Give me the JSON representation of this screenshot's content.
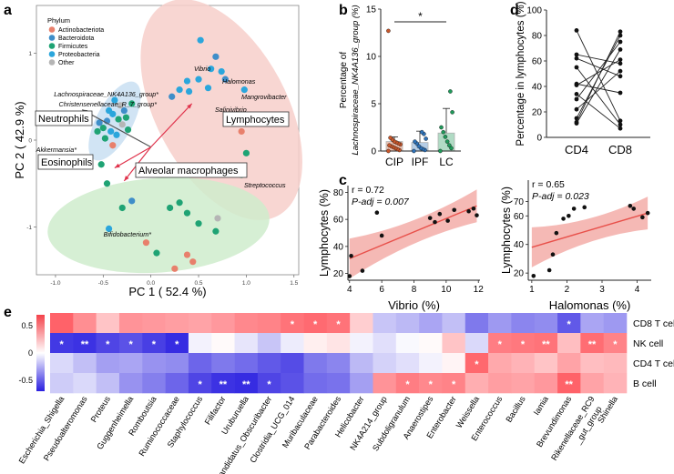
{
  "panels": {
    "a": "a",
    "b": "b",
    "c": "c",
    "d": "d",
    "e": "e"
  },
  "colors": {
    "actinobacteriota": "#e8806c",
    "bacteroidota": "#3f8ec9",
    "firmicutes": "#1fa374",
    "proteobacteria": "#2ba6dc",
    "other": "#b5b5b5",
    "ellipse_red": "#f7cfca",
    "ellipse_green": "#cfeccc",
    "ellipse_blue": "#c9dff2",
    "arrow_red": "#e0334c",
    "arrow_grey": "#555555",
    "regression": "#e8504a",
    "heat_pos": "#f4424a",
    "heat_neg": "#2a1fe0"
  },
  "chart_data": [
    {
      "id": "a",
      "type": "scatter",
      "xlabel": "PC 1 ( 52.4 %)",
      "ylabel": "PC 2 ( 42.9 %)",
      "xlim": [
        -1.2,
        1.55
      ],
      "ylim": [
        -1.55,
        1.55
      ],
      "xticks": [
        -1.0,
        -0.5,
        0.0,
        0.5,
        1.0,
        1.5
      ],
      "xtick_labels": [
        "-1.0",
        "-0.5",
        "0.0",
        "0.5",
        "1.0",
        "1.5"
      ],
      "yticks": [
        -1,
        0,
        1
      ],
      "ytick_labels": [
        "-1",
        "0",
        "1"
      ],
      "legend": {
        "title": "Phylum",
        "items": [
          "Actinobacteriota",
          "Bacteroidota",
          "Firmicutes",
          "Proteobacteria",
          "Other"
        ],
        "keys": [
          "actinobacteriota",
          "bacteroidota",
          "firmicutes",
          "proteobacteria",
          "other"
        ]
      },
      "arrow_origin": [
        0.0,
        -0.08
      ],
      "arrows": [
        {
          "label": "Lymphocytes",
          "end": [
            0.43,
            0.42
          ],
          "color_key": "arrow_red",
          "boxed": true
        },
        {
          "label": "Neutrophils",
          "end": [
            -0.72,
            0.35
          ],
          "color_key": "arrow_grey",
          "boxed": true
        },
        {
          "label": "Eosinophils",
          "end": [
            -0.38,
            -0.32
          ],
          "color_key": "arrow_red",
          "boxed": true
        },
        {
          "label": "Alveolar macrophages",
          "end": [
            -0.28,
            -0.47
          ],
          "color_key": "arrow_red",
          "boxed": true
        }
      ],
      "taxa_labels": [
        {
          "label": "Vibrio",
          "x": 0.55,
          "y": 0.95
        },
        {
          "label": "Halomonas",
          "x": 0.82,
          "y": 0.76
        },
        {
          "label": "Mangrovibacter",
          "x": 1.04,
          "y": 0.58
        },
        {
          "label": "Salinivibrio",
          "x": 0.82,
          "y": 0.42
        },
        {
          "label": "Lachnospiraceae_NK4A136_group*",
          "x": -0.36,
          "y": 0.54
        },
        {
          "label": "Christensenellaceae_R_7_group*",
          "x": -0.36,
          "y": 0.37
        },
        {
          "label": "Akkermansia*",
          "x": -0.48,
          "y": -0.08
        },
        {
          "label": "Streptococcus",
          "x": 1.0,
          "y": -0.42
        },
        {
          "label": "Bifidobacterium*",
          "x": 0.02,
          "y": -1.0
        }
      ],
      "points": [
        {
          "x": 0.52,
          "y": 1.15,
          "c": "proteobacteria"
        },
        {
          "x": 0.68,
          "y": 0.96,
          "c": "bacteroidota"
        },
        {
          "x": 0.63,
          "y": 0.82,
          "c": "proteobacteria"
        },
        {
          "x": 0.74,
          "y": 0.79,
          "c": "proteobacteria"
        },
        {
          "x": 0.78,
          "y": 0.7,
          "c": "bacteroidota"
        },
        {
          "x": 0.98,
          "y": 0.58,
          "c": "proteobacteria"
        },
        {
          "x": 0.6,
          "y": 0.6,
          "c": "proteobacteria"
        },
        {
          "x": 0.5,
          "y": 0.7,
          "c": "proteobacteria"
        },
        {
          "x": 0.4,
          "y": 0.56,
          "c": "proteobacteria"
        },
        {
          "x": 0.3,
          "y": 0.58,
          "c": "proteobacteria"
        },
        {
          "x": 0.38,
          "y": 0.68,
          "c": "proteobacteria"
        },
        {
          "x": 0.22,
          "y": 0.5,
          "c": "bacteroidota"
        },
        {
          "x": 0.95,
          "y": 0.1,
          "c": "actinobacteriota"
        },
        {
          "x": 1.0,
          "y": -0.15,
          "c": "firmicutes"
        },
        {
          "x": 0.95,
          "y": -0.4,
          "c": "firmicutes"
        },
        {
          "x": -0.38,
          "y": 0.46,
          "c": "proteobacteria"
        },
        {
          "x": -0.32,
          "y": 0.4,
          "c": "other"
        },
        {
          "x": -0.28,
          "y": 0.34,
          "c": "bacteroidota"
        },
        {
          "x": -0.4,
          "y": 0.3,
          "c": "proteobacteria"
        },
        {
          "x": -0.34,
          "y": 0.24,
          "c": "firmicutes"
        },
        {
          "x": -0.46,
          "y": 0.22,
          "c": "bacteroidota"
        },
        {
          "x": -0.3,
          "y": 0.18,
          "c": "other"
        },
        {
          "x": -0.5,
          "y": 0.14,
          "c": "firmicutes"
        },
        {
          "x": -0.42,
          "y": 0.1,
          "c": "proteobacteria"
        },
        {
          "x": -0.56,
          "y": 0.1,
          "c": "firmicutes"
        },
        {
          "x": -0.36,
          "y": 0.06,
          "c": "proteobacteria"
        },
        {
          "x": -0.48,
          "y": 0.02,
          "c": "firmicutes"
        },
        {
          "x": -0.4,
          "y": -0.06,
          "c": "actinobacteriota"
        },
        {
          "x": -0.44,
          "y": 0.34,
          "c": "proteobacteria"
        },
        {
          "x": -0.2,
          "y": 0.42,
          "c": "firmicutes"
        },
        {
          "x": -0.54,
          "y": 0.2,
          "c": "bacteroidota"
        },
        {
          "x": -0.26,
          "y": 0.26,
          "c": "firmicutes"
        },
        {
          "x": -0.24,
          "y": 0.12,
          "c": "firmicutes"
        },
        {
          "x": -0.52,
          "y": -0.28,
          "c": "firmicutes"
        },
        {
          "x": -0.46,
          "y": -0.5,
          "c": "firmicutes"
        },
        {
          "x": -0.3,
          "y": -0.78,
          "c": "firmicutes"
        },
        {
          "x": -0.44,
          "y": -1.02,
          "c": "proteobacteria"
        },
        {
          "x": -0.2,
          "y": -0.7,
          "c": "bacteroidota"
        },
        {
          "x": 0.2,
          "y": -0.78,
          "c": "firmicutes"
        },
        {
          "x": 0.3,
          "y": -0.72,
          "c": "firmicutes"
        },
        {
          "x": 0.38,
          "y": -0.84,
          "c": "firmicutes"
        },
        {
          "x": 0.5,
          "y": -0.96,
          "c": "firmicutes"
        },
        {
          "x": 0.7,
          "y": -0.9,
          "c": "other"
        },
        {
          "x": 0.68,
          "y": -1.05,
          "c": "firmicutes"
        },
        {
          "x": -0.05,
          "y": -1.18,
          "c": "actinobacteriota"
        },
        {
          "x": 0.38,
          "y": -1.32,
          "c": "actinobacteriota"
        },
        {
          "x": 0.44,
          "y": -1.4,
          "c": "actinobacteriota"
        },
        {
          "x": 0.25,
          "y": -1.48,
          "c": "actinobacteriota"
        },
        {
          "x": 0.06,
          "y": -1.3,
          "c": "firmicutes"
        }
      ]
    },
    {
      "id": "b",
      "type": "bar",
      "ylabel": "Percentage of\nLachnospiraceae_NK4A136_group (%)",
      "categories": [
        "CIP",
        "IPF",
        "LC"
      ],
      "values": [
        1.0,
        0.9,
        1.9
      ],
      "error_upper": [
        1.5,
        2.1,
        4.5
      ],
      "ylim": [
        0,
        15
      ],
      "yticks": [
        0,
        5,
        10,
        15
      ],
      "ytick_labels": [
        "0",
        "5",
        "10",
        "15"
      ],
      "significance": "*",
      "sig_pair": [
        0,
        2
      ],
      "points": [
        [
          0.0,
          0.1,
          0.2,
          0.3,
          0.4,
          0.5,
          0.6,
          0.7,
          0.8,
          0.9,
          1.0,
          1.2,
          1.4,
          12.7
        ],
        [
          0.0,
          0.1,
          0.2,
          0.3,
          0.5,
          0.8,
          1.0,
          1.3,
          1.8,
          2.0
        ],
        [
          0.0,
          0.3,
          0.6,
          1.0,
          1.5,
          2.0,
          2.5,
          4.1,
          6.3
        ]
      ]
    },
    {
      "id": "d",
      "type": "line",
      "ylabel": "Percentage in lymphocytes (%)",
      "categories": [
        "CD4",
        "CD8"
      ],
      "ylim": [
        0,
        100
      ],
      "yticks": [
        0,
        20,
        40,
        60,
        80,
        100
      ],
      "ytick_labels": [
        "0",
        "20",
        "40",
        "60",
        "80",
        "100"
      ],
      "pairs": [
        [
          84,
          13
        ],
        [
          65,
          58
        ],
        [
          62,
          48
        ],
        [
          55,
          10
        ],
        [
          42,
          35
        ],
        [
          41,
          61
        ],
        [
          34,
          7
        ],
        [
          30,
          75
        ],
        [
          22,
          52
        ],
        [
          15,
          80
        ],
        [
          12,
          83
        ],
        [
          11,
          69
        ]
      ]
    },
    {
      "id": "c1",
      "type": "scatter",
      "annot_r": "r = 0.72",
      "annot_p": "P-adj = 0.007",
      "xlabel": "Vibrio (%)",
      "ylabel": "Lymphocytes (%)",
      "xlim": [
        3.9,
        12.1
      ],
      "ylim": [
        15,
        85
      ],
      "xticks": [
        4,
        6,
        8,
        10,
        12
      ],
      "xtick_labels": [
        "4",
        "6",
        "8",
        "10",
        "12"
      ],
      "yticks": [
        20,
        40,
        60,
        80
      ],
      "ytick_labels": [
        "20",
        "40",
        "60",
        "80"
      ],
      "fit": {
        "x0": 4.0,
        "y0": 31,
        "x1": 11.9,
        "y1": 70
      },
      "points": [
        [
          4.1,
          33
        ],
        [
          4.0,
          18
        ],
        [
          4.8,
          22
        ],
        [
          5.7,
          65
        ],
        [
          6.0,
          48
        ],
        [
          9.0,
          61
        ],
        [
          9.3,
          58
        ],
        [
          9.6,
          64
        ],
        [
          10.1,
          59
        ],
        [
          10.5,
          67
        ],
        [
          11.4,
          66
        ],
        [
          11.7,
          68
        ],
        [
          11.9,
          63
        ]
      ]
    },
    {
      "id": "c2",
      "type": "scatter",
      "annot_r": "r = 0.65",
      "annot_p": "P-adj = 0.023",
      "xlabel": "Halomonas (%)",
      "ylabel": "Lymphocytes (%)",
      "xlim": [
        0.9,
        4.4
      ],
      "ylim": [
        15,
        85
      ],
      "xticks": [
        1,
        2,
        3,
        4
      ],
      "xtick_labels": [
        "1",
        "2",
        "3",
        "4"
      ],
      "yticks": [
        20,
        40,
        60,
        70
      ],
      "ytick_labels": [
        "20",
        "40",
        "60",
        "70"
      ],
      "fit": {
        "x0": 1.0,
        "y0": 38,
        "x1": 4.3,
        "y1": 62
      },
      "points": [
        [
          1.05,
          18
        ],
        [
          1.5,
          22
        ],
        [
          1.6,
          33
        ],
        [
          1.7,
          48
        ],
        [
          1.9,
          58
        ],
        [
          2.05,
          60
        ],
        [
          2.2,
          65
        ],
        [
          2.5,
          66
        ],
        [
          3.8,
          67
        ],
        [
          3.9,
          65
        ],
        [
          4.15,
          59
        ],
        [
          4.3,
          62
        ]
      ]
    },
    {
      "id": "e",
      "type": "heatmap",
      "rows": [
        "CD8 T cell",
        "NK cell",
        "CD4 T cell",
        "B cell"
      ],
      "columns": [
        "Escherichia_Shigella",
        "Pseudoalteromonas",
        "Proteus",
        "Guggenheimella",
        "Romboutsia",
        "Ruminococcaceae",
        "Staphylococcus",
        "Filifactor",
        "Uruburuella",
        "Candidatus_Obscuribacter",
        "Clostridia_UCG_014",
        "Muribaculaceae",
        "Parabacteroides",
        "Helicobacter",
        "NK4A214_group",
        "Subdoligranulum",
        "Anaerostipes",
        "Enterobacter",
        "Weissella",
        "Enterococcus",
        "Bacillus",
        "Iamia",
        "Brevundimonas",
        "Rikenellaceae_RC9\n_gut_group",
        "Shinella"
      ],
      "scale_ticks": [
        0.5,
        0.0,
        -0.5
      ],
      "scale_tick_labels": [
        "0.5",
        "0",
        "-0.5"
      ],
      "values": [
        [
          0.58,
          0.42,
          0.22,
          0.4,
          0.38,
          0.36,
          0.34,
          0.38,
          0.44,
          0.46,
          0.52,
          0.55,
          0.52,
          0.18,
          -0.18,
          -0.22,
          -0.28,
          -0.2,
          -0.42,
          -0.32,
          -0.38,
          -0.36,
          -0.52,
          -0.28,
          -0.32
        ],
        [
          -0.62,
          -0.64,
          -0.58,
          -0.54,
          -0.6,
          -0.66,
          -0.04,
          0.02,
          -0.08,
          -0.18,
          -0.06,
          0.06,
          0.1,
          -0.04,
          -0.1,
          -0.02,
          0.02,
          0.22,
          -0.12,
          0.48,
          0.5,
          0.52,
          0.24,
          0.54,
          0.46
        ],
        [
          -0.12,
          -0.2,
          -0.3,
          -0.28,
          -0.34,
          -0.36,
          -0.48,
          -0.42,
          -0.46,
          -0.52,
          -0.56,
          -0.42,
          -0.38,
          -0.22,
          -0.14,
          -0.1,
          -0.04,
          0.04,
          0.56,
          0.32,
          0.28,
          0.22,
          0.34,
          0.24,
          0.26
        ],
        [
          -0.16,
          -0.12,
          -0.2,
          -0.34,
          -0.4,
          -0.48,
          -0.58,
          -0.64,
          -0.66,
          -0.58,
          -0.54,
          -0.46,
          -0.44,
          -0.3,
          0.4,
          0.48,
          0.44,
          0.46,
          0.3,
          0.36,
          0.34,
          0.38,
          0.58,
          0.34,
          0.28
        ]
      ],
      "significance": [
        [
          "",
          "",
          "",
          "",
          "",
          "",
          "",
          "",
          "",
          "",
          "*",
          "*",
          "*",
          "",
          "",
          "",
          "",
          "",
          "",
          "",
          "",
          "",
          "*",
          "",
          ""
        ],
        [
          "*",
          "**",
          "*",
          "*",
          "*",
          "*",
          "",
          "",
          "",
          "",
          "",
          "",
          "",
          "",
          "",
          "",
          "",
          "",
          "",
          "*",
          "*",
          "**",
          "",
          "**",
          "*"
        ],
        [
          "",
          "",
          "",
          "",
          "",
          "",
          "",
          "",
          "",
          "",
          "",
          "",
          "",
          "",
          "",
          "",
          "",
          "",
          "*",
          "",
          "",
          "",
          "",
          "",
          ""
        ],
        [
          "",
          "",
          "",
          "",
          "",
          "",
          "*",
          "**",
          "**",
          "*",
          "",
          "",
          "",
          "",
          "",
          "*",
          "*",
          "*",
          "",
          "",
          "",
          "",
          "**",
          "",
          ""
        ]
      ]
    }
  ]
}
